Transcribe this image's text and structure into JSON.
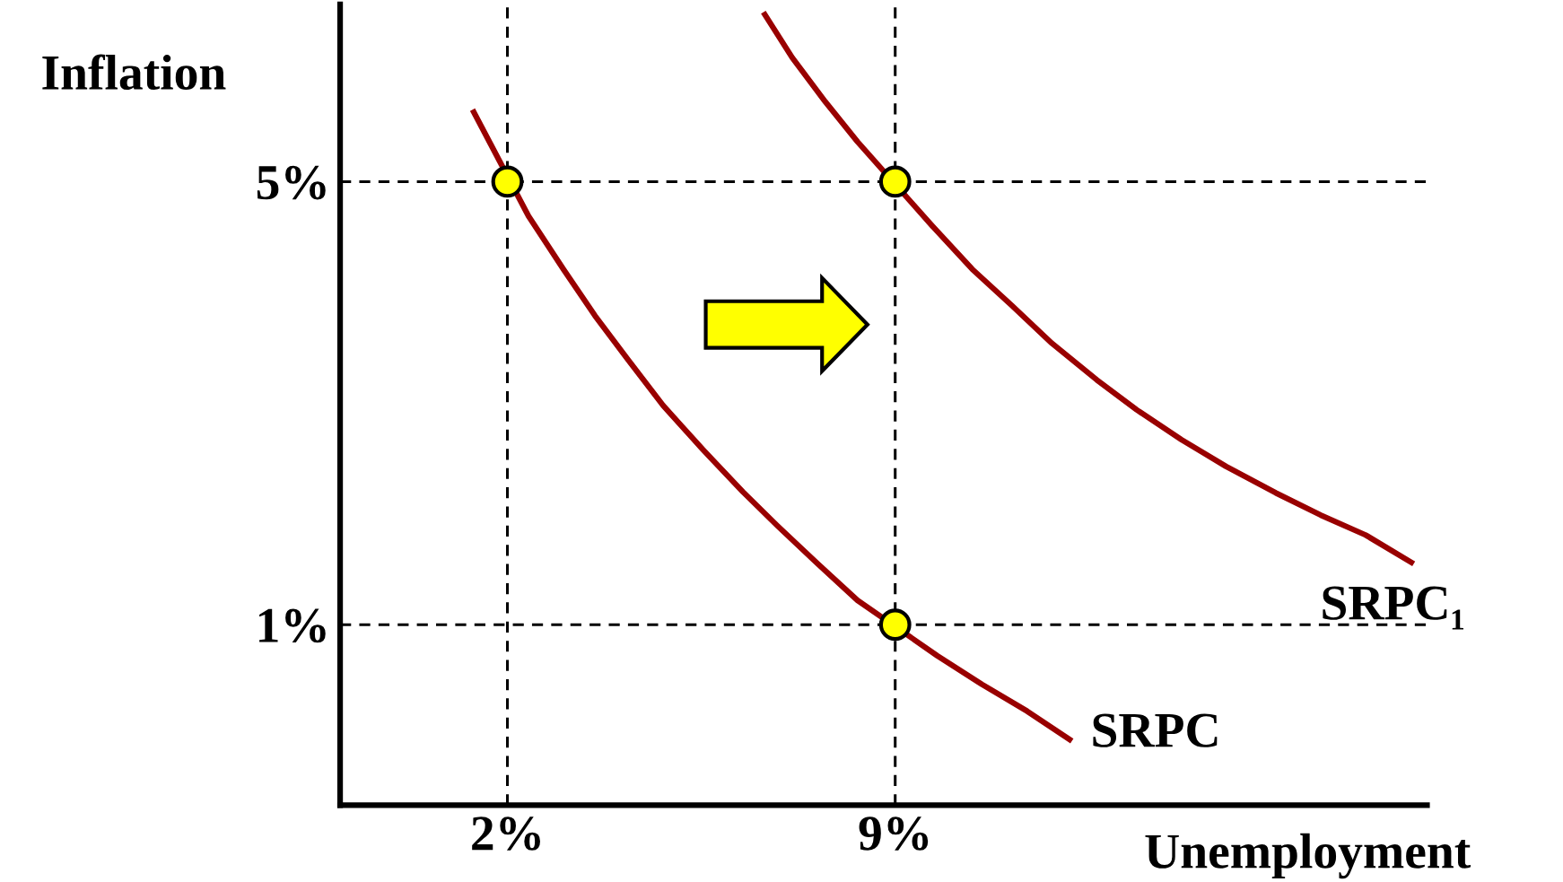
{
  "chart_data": {
    "type": "line",
    "xlabel": "Unemployment",
    "ylabel": "Inflation",
    "xlim": [
      -1.02,
      18.6
    ],
    "ylim": [
      -0.63,
      6.6
    ],
    "xticks": [
      {
        "value": 2,
        "label": "2%"
      },
      {
        "value": 9,
        "label": "9%"
      }
    ],
    "yticks": [
      {
        "value": 1,
        "label": "1%"
      },
      {
        "value": 5,
        "label": "5%"
      }
    ],
    "grid": false,
    "legend": false,
    "marker": "none",
    "line_style": "solid",
    "ref_lines": [
      {
        "axis": "x",
        "value": 2,
        "color": "#000000",
        "line_style": "dashed"
      },
      {
        "axis": "x",
        "value": 9,
        "color": "#000000",
        "line_style": "dashed"
      },
      {
        "axis": "y",
        "value": 5,
        "color": "#000000",
        "line_style": "dashed"
      },
      {
        "axis": "y",
        "value": 1,
        "color": "#000000",
        "line_style": "dashed"
      }
    ],
    "series": [
      {
        "name": "SRPC",
        "color": "#990000",
        "x": [
          1.37,
          2.38,
          3.01,
          3.58,
          4.18,
          4.81,
          5.53,
          6.25,
          6.88,
          7.6,
          8.32,
          9.76,
          10.57,
          11.38,
          12.19
        ],
        "values": [
          5.65,
          4.69,
          4.21,
          3.79,
          3.39,
          2.98,
          2.58,
          2.2,
          1.89,
          1.55,
          1.22,
          0.72,
          0.46,
          0.22,
          -0.05
        ]
      },
      {
        "name": "SRPC₁",
        "color": "#990000",
        "x": [
          6.62,
          7.14,
          7.74,
          8.32,
          9.67,
          10.39,
          11.11,
          11.83,
          12.64,
          13.36,
          14.17,
          14.97,
          15.87,
          16.68,
          17.49,
          18.36
        ],
        "values": [
          6.53,
          6.12,
          5.72,
          5.36,
          4.6,
          4.21,
          3.88,
          3.54,
          3.21,
          2.94,
          2.67,
          2.43,
          2.19,
          1.99,
          1.81,
          1.55
        ]
      },
      {
        "type": "scatter",
        "color": "#ffff00",
        "marker": "circle",
        "x": [
          2,
          9,
          9
        ],
        "values": [
          5,
          5,
          1
        ]
      }
    ]
  }
}
